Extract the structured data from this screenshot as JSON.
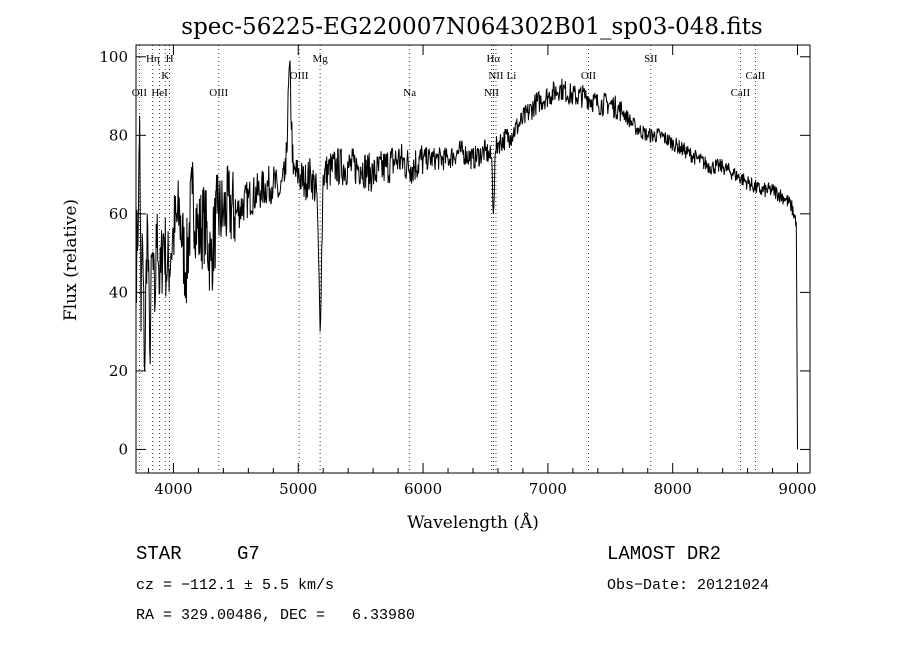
{
  "chart_data": {
    "type": "line",
    "title": "spec-56225-EG220007N064302B01_sp03-048.fits",
    "xlabel": "Wavelength (Å)",
    "ylabel": "Flux (relative)",
    "xlim": [
      3700,
      9100
    ],
    "ylim": [
      -6,
      103
    ],
    "x_ticks": [
      4000,
      5000,
      6000,
      7000,
      8000,
      9000
    ],
    "y_ticks": [
      0,
      20,
      40,
      60,
      80,
      100
    ],
    "grid": false,
    "spectral_lines": [
      {
        "label": "OII",
        "x": 3727,
        "row": 3
      },
      {
        "label": "Hη",
        "x": 3835,
        "row": 1
      },
      {
        "label": "HeI",
        "x": 3889,
        "row": 3
      },
      {
        "label": "K",
        "x": 3934,
        "row": 2
      },
      {
        "label": "H",
        "x": 3969,
        "row": 1
      },
      {
        "label": "OIII",
        "x": 4363,
        "row": 3
      },
      {
        "label": "OIII",
        "x": 5007,
        "row": 2
      },
      {
        "label": "Mg",
        "x": 5175,
        "row": 1
      },
      {
        "label": "Na",
        "x": 5893,
        "row": 3
      },
      {
        "label": "NII",
        "x": 6548,
        "row": 3
      },
      {
        "label": "NII",
        "x": 6584,
        "row": 2
      },
      {
        "label": "Hα",
        "x": 6563,
        "row": 1
      },
      {
        "label": "Li",
        "x": 6708,
        "row": 2
      },
      {
        "label": "OII",
        "x": 7325,
        "row": 2
      },
      {
        "label": "SII",
        "x": 7825,
        "row": 1
      },
      {
        "label": "CaII",
        "x": 8542,
        "row": 3
      },
      {
        "label": "CaII",
        "x": 8662,
        "row": 2
      }
    ],
    "series": [
      {
        "x": [
          3700,
          3720,
          3730,
          3740,
          3750,
          3770,
          3790,
          3810,
          3830,
          3850,
          3870,
          3890,
          3920,
          3950,
          3980,
          4000,
          4050,
          4100,
          4150,
          4200,
          4250,
          4300,
          4350,
          4400,
          4450,
          4500,
          4600,
          4700,
          4800,
          4850,
          4900,
          4930,
          4960,
          5000,
          5050,
          5100,
          5150,
          5175,
          5200,
          5300,
          5400,
          5500,
          5600,
          5700,
          5800,
          5900,
          6000,
          6100,
          6200,
          6300,
          6400,
          6500,
          6550,
          6563,
          6580,
          6600,
          6700,
          6800,
          6900,
          7000,
          7100,
          7200,
          7300,
          7400,
          7500,
          7600,
          7700,
          7800,
          7900,
          8000,
          8100,
          8200,
          8300,
          8400,
          8500,
          8600,
          8700,
          8800,
          8900,
          8950,
          8990,
          9000
        ],
        "y": [
          45,
          62,
          85,
          30,
          55,
          20,
          60,
          25,
          50,
          35,
          60,
          40,
          55,
          45,
          50,
          55,
          60,
          45,
          65,
          55,
          58,
          48,
          60,
          60,
          62,
          60,
          64,
          66,
          68,
          65,
          70,
          98,
          70,
          70,
          68,
          70,
          65,
          30,
          70,
          72,
          72,
          72,
          70,
          72,
          74,
          72,
          74,
          74,
          74,
          76,
          74,
          76,
          74,
          60,
          76,
          78,
          80,
          84,
          88,
          90,
          92,
          90,
          90,
          88,
          88,
          86,
          82,
          80,
          80,
          78,
          76,
          74,
          72,
          72,
          70,
          68,
          66,
          66,
          64,
          62,
          58,
          0
        ]
      }
    ]
  },
  "annotations": {
    "object_class": "STAR",
    "subclass": "G7",
    "survey": "LAMOST DR2",
    "redshift": "cz = −112.1 ± 5.5 km/s",
    "obs_date": "Obs−Date: 20121024",
    "coords": "RA = 329.00486, DEC =   6.33980"
  }
}
